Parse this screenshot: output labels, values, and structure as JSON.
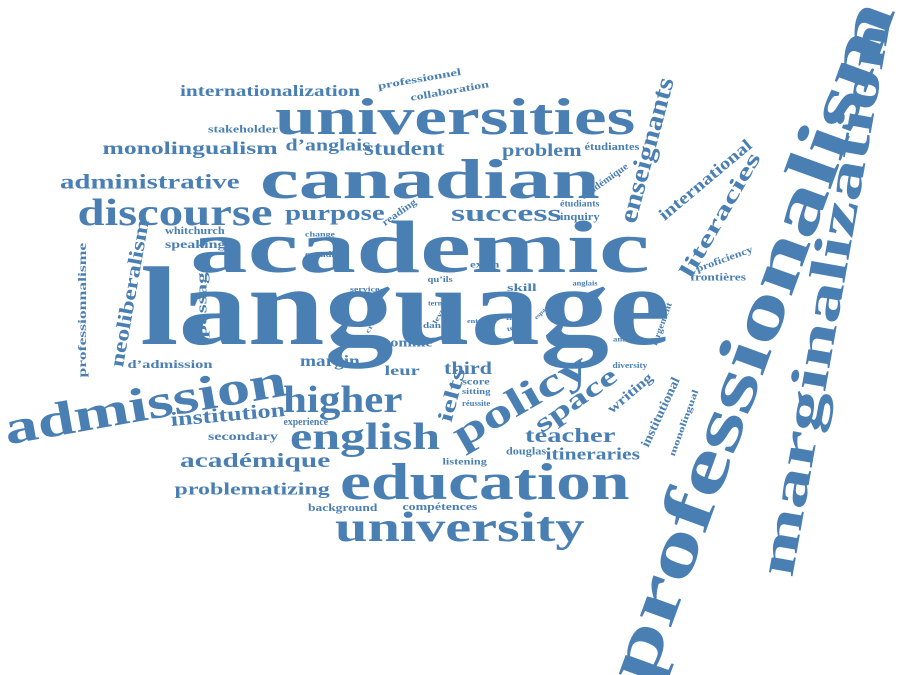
{
  "colors": {
    "word": "#4a7fb4",
    "background": "#ffffff"
  },
  "words": [
    {
      "id": "w0",
      "text": "language"
    },
    {
      "id": "w1",
      "text": "academic"
    },
    {
      "id": "w2",
      "text": "professionalism"
    },
    {
      "id": "w3",
      "text": "marginalization"
    },
    {
      "id": "w4",
      "text": "canadian"
    },
    {
      "id": "w5",
      "text": "universities"
    },
    {
      "id": "w6",
      "text": "education"
    },
    {
      "id": "w7",
      "text": "admission"
    },
    {
      "id": "w8",
      "text": "university"
    },
    {
      "id": "w9",
      "text": "policy"
    },
    {
      "id": "w10",
      "text": "english"
    },
    {
      "id": "w11",
      "text": "higher"
    },
    {
      "id": "w12",
      "text": "discourse"
    },
    {
      "id": "w13",
      "text": "internationalization"
    },
    {
      "id": "w14",
      "text": "professionnel"
    },
    {
      "id": "w15",
      "text": "collaboration"
    },
    {
      "id": "w16",
      "text": "stakeholder"
    },
    {
      "id": "w17",
      "text": "monolingualism"
    },
    {
      "id": "w18",
      "text": "d’anglais"
    },
    {
      "id": "w19",
      "text": "student"
    },
    {
      "id": "w20",
      "text": "problem"
    },
    {
      "id": "w21",
      "text": "étudiantes"
    },
    {
      "id": "w22",
      "text": "enseignants"
    },
    {
      "id": "w23",
      "text": "administrative"
    },
    {
      "id": "w24",
      "text": "purpose"
    },
    {
      "id": "w25",
      "text": "success"
    },
    {
      "id": "w26",
      "text": "reading"
    },
    {
      "id": "w27",
      "text": "étudiants"
    },
    {
      "id": "w28",
      "text": "inquiry"
    },
    {
      "id": "w29",
      "text": "académique"
    },
    {
      "id": "w30",
      "text": "international"
    },
    {
      "id": "w31",
      "text": "literacies"
    },
    {
      "id": "w32",
      "text": "whitchurch"
    },
    {
      "id": "w33",
      "text": "change"
    },
    {
      "id": "w34",
      "text": "speaking"
    },
    {
      "id": "w35",
      "text": "neoliberalism"
    },
    {
      "id": "w36",
      "text": "professionnalisme"
    },
    {
      "id": "w37",
      "text": "passage"
    },
    {
      "id": "w38",
      "text": "canadien"
    },
    {
      "id": "w39",
      "text": "exam"
    },
    {
      "id": "w40",
      "text": "proficiency"
    },
    {
      "id": "w41",
      "text": "frontières"
    },
    {
      "id": "w42",
      "text": "skill"
    },
    {
      "id": "w43",
      "text": "anglais"
    },
    {
      "id": "w44",
      "text": "qu’ils"
    },
    {
      "id": "w45",
      "text": "service"
    },
    {
      "id": "w46",
      "text": "critical"
    },
    {
      "id": "w47",
      "text": "dan"
    },
    {
      "id": "w48",
      "text": "comme"
    },
    {
      "id": "w49",
      "text": "term"
    },
    {
      "id": "w50",
      "text": "level"
    },
    {
      "id": "w51",
      "text": "note"
    },
    {
      "id": "w52",
      "text": "termes"
    },
    {
      "id": "w53",
      "text": "entre"
    },
    {
      "id": "w54",
      "text": "espace"
    },
    {
      "id": "w55",
      "text": "largement"
    },
    {
      "id": "w56",
      "text": "analysis"
    },
    {
      "id": "w57",
      "text": "d’admission"
    },
    {
      "id": "w58",
      "text": "margin"
    },
    {
      "id": "w59",
      "text": "leur"
    },
    {
      "id": "w60",
      "text": "third"
    },
    {
      "id": "w61",
      "text": "ielts"
    },
    {
      "id": "w62",
      "text": "space"
    },
    {
      "id": "w63",
      "text": "score"
    },
    {
      "id": "w64",
      "text": "sitting"
    },
    {
      "id": "w65",
      "text": "réussite"
    },
    {
      "id": "w66",
      "text": "diversity"
    },
    {
      "id": "w67",
      "text": "writing"
    },
    {
      "id": "w68",
      "text": "institutional"
    },
    {
      "id": "w69",
      "text": "monolingual"
    },
    {
      "id": "w70",
      "text": "institution"
    },
    {
      "id": "w71",
      "text": "experience"
    },
    {
      "id": "w72",
      "text": "secondary"
    },
    {
      "id": "w73",
      "text": "teacher"
    },
    {
      "id": "w74",
      "text": "itineraries"
    },
    {
      "id": "w75",
      "text": "listening"
    },
    {
      "id": "w76",
      "text": "douglas"
    },
    {
      "id": "w77",
      "text": "problematizing"
    },
    {
      "id": "w78",
      "text": "background"
    },
    {
      "id": "w79",
      "text": "compétences"
    },
    {
      "id": "w80",
      "text": "académique"
    }
  ]
}
